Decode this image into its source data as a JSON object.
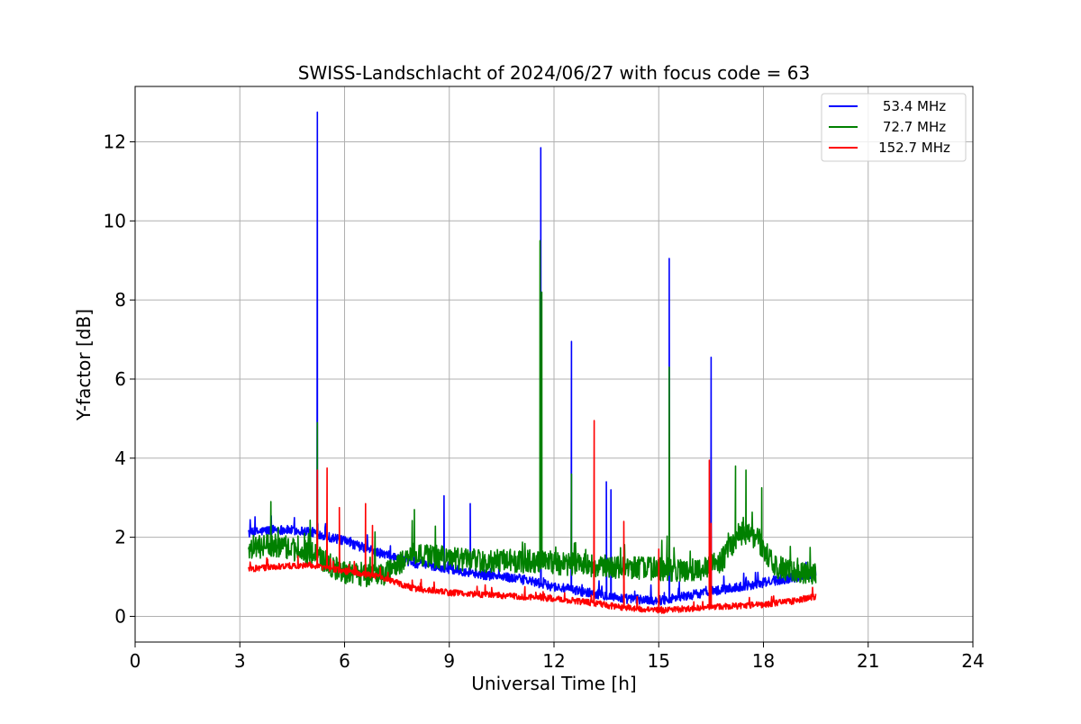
{
  "chart_data": {
    "type": "line",
    "title": "SWISS-Landschlacht of 2024/06/27 with focus code = 63",
    "xlabel": "Universal Time [h]",
    "ylabel": "Y-factor [dB]",
    "xlim": [
      0,
      24
    ],
    "ylim": [
      -0.65,
      13.4
    ],
    "xticks": [
      0,
      3,
      6,
      9,
      12,
      15,
      18,
      21,
      24
    ],
    "xtick_labels": [
      "0",
      "3",
      "6",
      "9",
      "12",
      "15",
      "18",
      "21",
      "24"
    ],
    "yticks": [
      0,
      2,
      4,
      6,
      8,
      10,
      12
    ],
    "ytick_labels": [
      "0",
      "2",
      "4",
      "6",
      "8",
      "10",
      "12"
    ],
    "grid": true,
    "legend_position": "top-right",
    "series": [
      {
        "name": "53.4 MHz",
        "color": "#0000ff",
        "baseline": [
          [
            3.25,
            2.1
          ],
          [
            4.0,
            2.2
          ],
          [
            5.0,
            2.15
          ],
          [
            6.0,
            1.9
          ],
          [
            7.0,
            1.6
          ],
          [
            8.0,
            1.35
          ],
          [
            9.0,
            1.2
          ],
          [
            10.0,
            1.05
          ],
          [
            11.0,
            0.95
          ],
          [
            12.0,
            0.75
          ],
          [
            13.0,
            0.6
          ],
          [
            14.0,
            0.45
          ],
          [
            15.0,
            0.4
          ],
          [
            16.0,
            0.55
          ],
          [
            17.0,
            0.7
          ],
          [
            18.0,
            0.85
          ],
          [
            19.0,
            1.0
          ],
          [
            19.5,
            1.1
          ]
        ],
        "noise": 0.12,
        "spikes": [
          [
            5.22,
            12.75
          ],
          [
            8.85,
            3.05
          ],
          [
            9.6,
            2.85
          ],
          [
            11.62,
            11.85
          ],
          [
            12.5,
            6.95
          ],
          [
            13.5,
            3.4
          ],
          [
            13.63,
            3.2
          ],
          [
            15.3,
            9.05
          ],
          [
            16.5,
            6.55
          ]
        ]
      },
      {
        "name": "72.7 MHz",
        "color": "#008000",
        "baseline": [
          [
            3.25,
            1.75
          ],
          [
            4.0,
            1.8
          ],
          [
            5.0,
            1.6
          ],
          [
            6.0,
            1.1
          ],
          [
            7.0,
            1.0
          ],
          [
            7.5,
            1.3
          ],
          [
            8.0,
            1.6
          ],
          [
            9.0,
            1.45
          ],
          [
            10.0,
            1.4
          ],
          [
            11.0,
            1.4
          ],
          [
            12.0,
            1.35
          ],
          [
            13.0,
            1.3
          ],
          [
            14.0,
            1.25
          ],
          [
            15.0,
            1.2
          ],
          [
            16.0,
            1.15
          ],
          [
            16.8,
            1.4
          ],
          [
            17.3,
            2.1
          ],
          [
            17.8,
            2.0
          ],
          [
            18.3,
            1.3
          ],
          [
            19.0,
            1.05
          ],
          [
            19.5,
            1.1
          ]
        ],
        "noise": 0.3,
        "spikes": [
          [
            5.22,
            4.9
          ],
          [
            8.0,
            2.7
          ],
          [
            11.6,
            9.5
          ],
          [
            11.65,
            8.2
          ],
          [
            12.5,
            3.6
          ],
          [
            15.3,
            6.3
          ],
          [
            17.2,
            3.8
          ],
          [
            17.5,
            3.7
          ],
          [
            17.95,
            3.25
          ]
        ]
      },
      {
        "name": "152.7 MHz",
        "color": "#ff0000",
        "baseline": [
          [
            3.25,
            1.2
          ],
          [
            4.0,
            1.25
          ],
          [
            5.0,
            1.3
          ],
          [
            6.0,
            1.15
          ],
          [
            7.0,
            1.0
          ],
          [
            8.0,
            0.7
          ],
          [
            9.0,
            0.6
          ],
          [
            10.0,
            0.55
          ],
          [
            11.0,
            0.5
          ],
          [
            12.0,
            0.45
          ],
          [
            13.0,
            0.35
          ],
          [
            14.0,
            0.22
          ],
          [
            15.0,
            0.15
          ],
          [
            16.0,
            0.2
          ],
          [
            17.0,
            0.25
          ],
          [
            18.0,
            0.3
          ],
          [
            19.0,
            0.4
          ],
          [
            19.5,
            0.5
          ]
        ],
        "noise": 0.08,
        "spikes": [
          [
            5.22,
            3.7
          ],
          [
            5.5,
            3.75
          ],
          [
            5.85,
            2.75
          ],
          [
            6.6,
            2.85
          ],
          [
            6.8,
            2.3
          ],
          [
            13.15,
            4.95
          ],
          [
            14.0,
            2.4
          ],
          [
            15.0,
            1.7
          ],
          [
            16.45,
            3.95
          ],
          [
            16.5,
            2.35
          ]
        ]
      }
    ]
  }
}
